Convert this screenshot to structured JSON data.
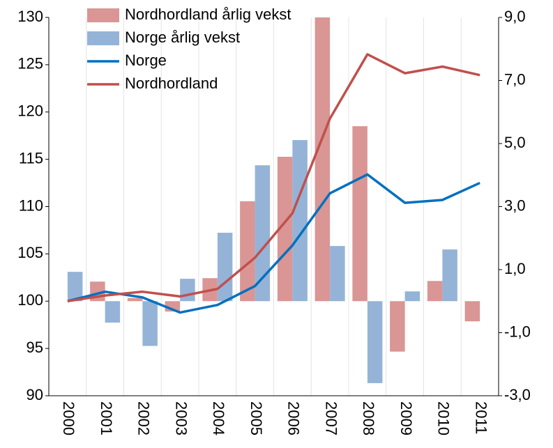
{
  "chart_data": {
    "type": "combo",
    "categories": [
      "2000",
      "2001",
      "2002",
      "2003",
      "2004",
      "2005",
      "2006",
      "2007",
      "2008",
      "2009",
      "2010",
      "2011"
    ],
    "series": [
      {
        "name": "Nordhordland årlig vekst",
        "type": "bar",
        "axis": "y2",
        "color": "#d99694",
        "values": [
          0,
          0.62,
          0.1,
          -0.33,
          0.73,
          3.17,
          4.58,
          9.0,
          5.55,
          -1.6,
          0.64,
          -0.64
        ]
      },
      {
        "name": "Norge årlig vekst",
        "type": "bar",
        "axis": "y2",
        "color": "#95b3d7",
        "values": [
          0.93,
          -0.68,
          -1.42,
          0.71,
          2.17,
          4.31,
          5.11,
          1.75,
          -2.6,
          0.31,
          1.64,
          0
        ]
      },
      {
        "name": "Norge",
        "type": "line",
        "color": "#0070c0",
        "values": [
          100,
          101.0,
          100.4,
          98.8,
          99.6,
          101.6,
          105.9,
          111.4,
          113.4,
          110.4,
          110.7,
          112.5
        ]
      },
      {
        "name": "Nordhordland",
        "type": "line",
        "color": "#c0504d",
        "values": [
          100,
          100.6,
          101.0,
          100.5,
          101.3,
          104.6,
          109.3,
          119.3,
          126.1,
          124.1,
          124.8,
          123.9
        ]
      }
    ],
    "ylim": [
      90,
      130
    ],
    "yticks": [
      90,
      95,
      100,
      105,
      110,
      115,
      120,
      125,
      130
    ],
    "y2lim": [
      -3,
      9
    ],
    "y2ticks": [
      {
        "value": -3,
        "label": "-3,0"
      },
      {
        "value": -1,
        "label": "-1,0"
      },
      {
        "value": 1,
        "label": "1,0"
      },
      {
        "value": 3,
        "label": "3,0"
      },
      {
        "value": 5,
        "label": "5,0"
      },
      {
        "value": 7,
        "label": "7,0"
      },
      {
        "value": 9,
        "label": "9,0"
      }
    ],
    "grid": true,
    "legend": "top-left"
  }
}
